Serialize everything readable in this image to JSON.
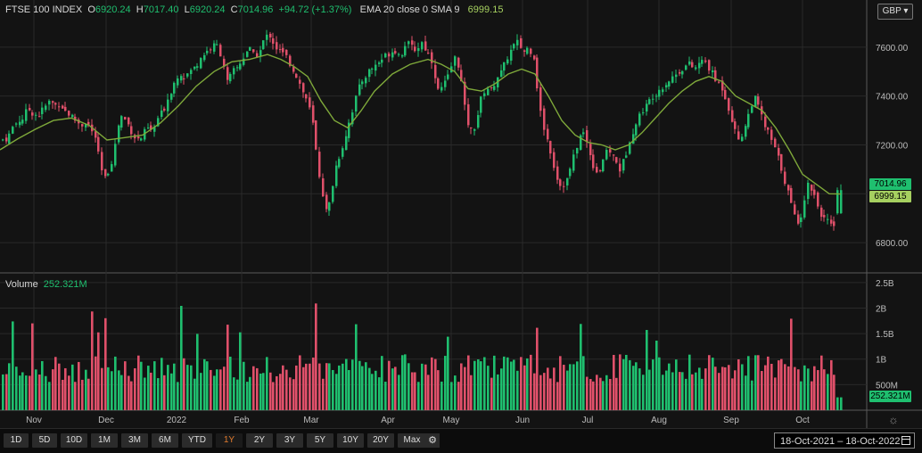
{
  "header": {
    "symbol": "FTSE 100 INDEX",
    "o_label": "O",
    "o_value": "6920.24",
    "h_label": "H",
    "h_value": "7017.40",
    "l_label": "L",
    "l_value": "6920.24",
    "c_label": "C",
    "c_value": "7014.96",
    "change": "+94.72 (+1.37%)",
    "indicator_label": "EMA 20 close 0 SMA 9",
    "indicator_value": "6999.15"
  },
  "currency": "GBP",
  "volume_header": {
    "label": "Volume",
    "value": "252.321M"
  },
  "price_tags": {
    "close": "7014.96",
    "ema": "6999.15",
    "volume": "252.321M"
  },
  "colors": {
    "up": "#1fbf6f",
    "down": "#e0506a",
    "ema": "#7ea83a",
    "background": "#131313",
    "grid": "#2a2a2a"
  },
  "chart_data": {
    "type": "candlestick",
    "price_axis": {
      "ticks": [
        "7600.00",
        "7400.00",
        "7200.00",
        "7000.00",
        "6800.00"
      ],
      "range": [
        6680,
        7720
      ]
    },
    "volume_axis": {
      "ticks": [
        "2.5B",
        "2B",
        "1.5B",
        "1B",
        "500M"
      ],
      "range": [
        0,
        2.55
      ]
    },
    "months": [
      "Nov",
      "Dec",
      "2022",
      "Feb",
      "Mar",
      "Apr",
      "May",
      "Jun",
      "Jul",
      "Aug",
      "Sep",
      "Oct"
    ],
    "close_series": [
      [
        0,
        7220
      ],
      [
        8,
        7230
      ],
      [
        14,
        7280
      ],
      [
        20,
        7300
      ],
      [
        25,
        7310
      ],
      [
        30,
        7350
      ],
      [
        36,
        7330
      ],
      [
        42,
        7320
      ],
      [
        48,
        7350
      ],
      [
        55,
        7380
      ],
      [
        60,
        7360
      ],
      [
        66,
        7370
      ],
      [
        72,
        7340
      ],
      [
        78,
        7320
      ],
      [
        84,
        7300
      ],
      [
        90,
        7280
      ],
      [
        96,
        7300
      ],
      [
        102,
        7250
      ],
      [
        106,
        7230
      ],
      [
        112,
        7100
      ],
      [
        118,
        7050
      ],
      [
        122,
        7120
      ],
      [
        126,
        7150
      ],
      [
        130,
        7260
      ],
      [
        134,
        7320
      ],
      [
        140,
        7300
      ],
      [
        146,
        7260
      ],
      [
        152,
        7220
      ],
      [
        158,
        7230
      ],
      [
        164,
        7270
      ],
      [
        170,
        7250
      ],
      [
        176,
        7310
      ],
      [
        182,
        7340
      ],
      [
        188,
        7400
      ],
      [
        194,
        7450
      ],
      [
        200,
        7500
      ],
      [
        206,
        7480
      ],
      [
        212,
        7500
      ],
      [
        218,
        7520
      ],
      [
        224,
        7560
      ],
      [
        230,
        7580
      ],
      [
        236,
        7600
      ],
      [
        242,
        7610
      ],
      [
        248,
        7560
      ],
      [
        254,
        7450
      ],
      [
        260,
        7500
      ],
      [
        266,
        7520
      ],
      [
        272,
        7560
      ],
      [
        278,
        7600
      ],
      [
        284,
        7560
      ],
      [
        290,
        7580
      ],
      [
        296,
        7640
      ],
      [
        302,
        7650
      ],
      [
        308,
        7600
      ],
      [
        314,
        7580
      ],
      [
        320,
        7560
      ],
      [
        326,
        7520
      ],
      [
        332,
        7480
      ],
      [
        338,
        7420
      ],
      [
        344,
        7380
      ],
      [
        350,
        7280
      ],
      [
        356,
        7100
      ],
      [
        362,
        6980
      ],
      [
        366,
        6900
      ],
      [
        370,
        7000
      ],
      [
        376,
        7120
      ],
      [
        382,
        7180
      ],
      [
        388,
        7260
      ],
      [
        394,
        7340
      ],
      [
        400,
        7420
      ],
      [
        406,
        7470
      ],
      [
        412,
        7500
      ],
      [
        418,
        7520
      ],
      [
        424,
        7540
      ],
      [
        430,
        7560
      ],
      [
        436,
        7580
      ],
      [
        442,
        7590
      ],
      [
        448,
        7560
      ],
      [
        454,
        7620
      ],
      [
        460,
        7600
      ],
      [
        466,
        7590
      ],
      [
        472,
        7620
      ],
      [
        478,
        7580
      ],
      [
        484,
        7540
      ],
      [
        490,
        7420
      ],
      [
        496,
        7440
      ],
      [
        502,
        7480
      ],
      [
        508,
        7560
      ],
      [
        514,
        7520
      ],
      [
        520,
        7350
      ],
      [
        526,
        7250
      ],
      [
        532,
        7280
      ],
      [
        538,
        7380
      ],
      [
        544,
        7440
      ],
      [
        550,
        7420
      ],
      [
        556,
        7480
      ],
      [
        562,
        7500
      ],
      [
        568,
        7560
      ],
      [
        574,
        7600
      ],
      [
        580,
        7620
      ],
      [
        586,
        7580
      ],
      [
        592,
        7600
      ],
      [
        598,
        7560
      ],
      [
        604,
        7350
      ],
      [
        610,
        7250
      ],
      [
        616,
        7180
      ],
      [
        622,
        7080
      ],
      [
        628,
        7030
      ],
      [
        634,
        7050
      ],
      [
        640,
        7120
      ],
      [
        646,
        7200
      ],
      [
        652,
        7260
      ],
      [
        658,
        7200
      ],
      [
        664,
        7120
      ],
      [
        670,
        7080
      ],
      [
        676,
        7150
      ],
      [
        682,
        7180
      ],
      [
        688,
        7140
      ],
      [
        694,
        7100
      ],
      [
        700,
        7150
      ],
      [
        706,
        7240
      ],
      [
        712,
        7280
      ],
      [
        718,
        7340
      ],
      [
        724,
        7360
      ],
      [
        730,
        7400
      ],
      [
        736,
        7420
      ],
      [
        742,
        7440
      ],
      [
        748,
        7460
      ],
      [
        754,
        7480
      ],
      [
        760,
        7500
      ],
      [
        766,
        7520
      ],
      [
        772,
        7530
      ],
      [
        778,
        7510
      ],
      [
        784,
        7540
      ],
      [
        790,
        7540
      ],
      [
        796,
        7500
      ],
      [
        802,
        7460
      ],
      [
        808,
        7440
      ],
      [
        814,
        7380
      ],
      [
        820,
        7300
      ],
      [
        826,
        7220
      ],
      [
        832,
        7250
      ],
      [
        838,
        7320
      ],
      [
        844,
        7400
      ],
      [
        850,
        7350
      ],
      [
        856,
        7280
      ],
      [
        862,
        7240
      ],
      [
        868,
        7180
      ],
      [
        874,
        7120
      ],
      [
        880,
        7040
      ],
      [
        886,
        6960
      ],
      [
        892,
        6880
      ],
      [
        898,
        6920
      ],
      [
        904,
        7040
      ],
      [
        910,
        7020
      ],
      [
        916,
        6950
      ],
      [
        922,
        6900
      ],
      [
        928,
        6880
      ],
      [
        934,
        6850
      ],
      [
        940,
        6930
      ],
      [
        943,
        7015
      ]
    ],
    "ema_series": [
      [
        0,
        7180
      ],
      [
        20,
        7225
      ],
      [
        40,
        7265
      ],
      [
        60,
        7300
      ],
      [
        80,
        7310
      ],
      [
        100,
        7280
      ],
      [
        120,
        7220
      ],
      [
        140,
        7230
      ],
      [
        160,
        7240
      ],
      [
        180,
        7290
      ],
      [
        200,
        7360
      ],
      [
        220,
        7440
      ],
      [
        240,
        7500
      ],
      [
        260,
        7540
      ],
      [
        280,
        7550
      ],
      [
        300,
        7570
      ],
      [
        315,
        7550
      ],
      [
        330,
        7520
      ],
      [
        345,
        7480
      ],
      [
        360,
        7380
      ],
      [
        375,
        7300
      ],
      [
        390,
        7270
      ],
      [
        405,
        7340
      ],
      [
        420,
        7420
      ],
      [
        440,
        7490
      ],
      [
        460,
        7530
      ],
      [
        480,
        7550
      ],
      [
        495,
        7530
      ],
      [
        510,
        7500
      ],
      [
        525,
        7430
      ],
      [
        540,
        7420
      ],
      [
        555,
        7450
      ],
      [
        570,
        7490
      ],
      [
        585,
        7510
      ],
      [
        600,
        7490
      ],
      [
        615,
        7400
      ],
      [
        630,
        7300
      ],
      [
        645,
        7240
      ],
      [
        660,
        7210
      ],
      [
        675,
        7200
      ],
      [
        690,
        7180
      ],
      [
        705,
        7200
      ],
      [
        720,
        7250
      ],
      [
        735,
        7310
      ],
      [
        750,
        7370
      ],
      [
        765,
        7420
      ],
      [
        780,
        7460
      ],
      [
        795,
        7480
      ],
      [
        810,
        7460
      ],
      [
        825,
        7400
      ],
      [
        840,
        7370
      ],
      [
        855,
        7340
      ],
      [
        870,
        7270
      ],
      [
        885,
        7180
      ],
      [
        900,
        7080
      ],
      [
        915,
        7040
      ],
      [
        930,
        7000
      ],
      [
        943,
        6999
      ]
    ],
    "volume_note": "billions; one bar per session"
  },
  "bottom_bar": {
    "ranges": [
      "1D",
      "5D",
      "10D",
      "1M",
      "3M",
      "6M",
      "YTD",
      "1Y",
      "2Y",
      "3Y",
      "5Y",
      "10Y",
      "20Y",
      "Max"
    ],
    "active": "1Y",
    "date_range": "18-Oct-2021  –  18-Oct-2022"
  }
}
